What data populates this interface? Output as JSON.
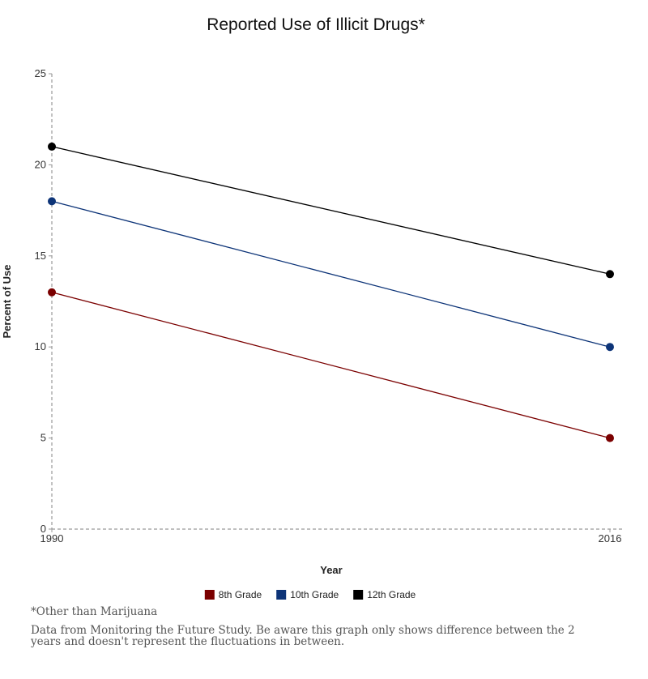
{
  "chart_data": {
    "type": "line",
    "title": "Reported Use of Illicit Drugs*",
    "xlabel": "Year",
    "ylabel": "Percent of Use",
    "x": [
      "1990",
      "2016"
    ],
    "ylim": [
      0,
      25
    ],
    "yticks": [
      0,
      5,
      10,
      15,
      20,
      25
    ],
    "grid": false,
    "legend_position": "bottom",
    "series": [
      {
        "name": "8th Grade",
        "color": "#7b0000",
        "values": [
          13,
          5
        ]
      },
      {
        "name": "10th Grade",
        "color": "#0d3478",
        "values": [
          18,
          10
        ]
      },
      {
        "name": "12th Grade",
        "color": "#000000",
        "values": [
          21,
          14
        ]
      }
    ]
  },
  "footnotes": {
    "marijuana_note": "*Other than Marijuana",
    "source_note": "Data from Monitoring the Future Study. Be aware this graph only shows difference between the 2 years and doesn't represent the fluctuations in between."
  }
}
